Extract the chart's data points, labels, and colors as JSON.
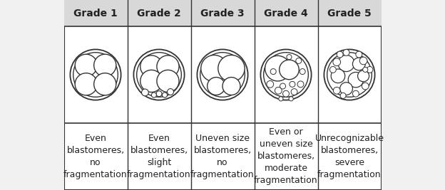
{
  "grades": [
    "Grade 1",
    "Grade 2",
    "Grade 3",
    "Grade 4",
    "Grade 5"
  ],
  "descriptions": [
    "Even\nblastomeres,\nno\nfragmentation",
    "Even\nblastomeres,\nslight\nfragmentation",
    "Uneven size\nblastomeres,\nno\nfragmentation",
    "Even or\nuneven size\nblastomeres,\nmoderate\nfragmentation",
    "Unrecognizable\nblastomeres,\nsevere\nfragmentation"
  ],
  "bg_color": "#f0f0f0",
  "header_bg": "#d8d8d8",
  "cell_bg": "#ffffff",
  "border_color": "#333333",
  "circle_color": "#333333",
  "text_color": "#222222",
  "header_fontsize": 10,
  "desc_fontsize": 9,
  "fig_width": 6.24,
  "fig_height": 2.67
}
